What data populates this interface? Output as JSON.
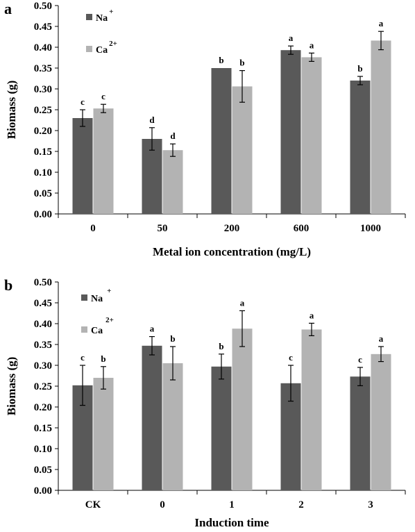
{
  "colors": {
    "na": "#595959",
    "ca": "#b3b3b3",
    "axis": "#000000"
  },
  "chart_data": [
    {
      "panel": "a",
      "type": "bar",
      "xlabel": "Metal ion concentration (mg/L)",
      "ylabel": "Biomass (g)",
      "ylim": [
        0,
        0.5
      ],
      "y_ticks": [
        "0.00",
        "0.05",
        "0.10",
        "0.15",
        "0.20",
        "0.25",
        "0.30",
        "0.35",
        "0.40",
        "0.45",
        "0.50"
      ],
      "categories": [
        "0",
        "50",
        "200",
        "600",
        "1000"
      ],
      "legend_position": "top-left",
      "series": [
        {
          "name": "Na",
          "sup": "+",
          "values": [
            0.23,
            0.18,
            0.35,
            0.393,
            0.32
          ],
          "errors": [
            0.02,
            0.027,
            0.0,
            0.01,
            0.01
          ],
          "labels": [
            "c",
            "d",
            "b",
            "a",
            "b"
          ]
        },
        {
          "name": "Ca",
          "sup": "2+",
          "values": [
            0.253,
            0.153,
            0.306,
            0.376,
            0.416
          ],
          "errors": [
            0.01,
            0.015,
            0.038,
            0.01,
            0.022
          ],
          "labels": [
            "c",
            "d",
            "b",
            "a",
            "a"
          ]
        }
      ]
    },
    {
      "panel": "b",
      "type": "bar",
      "xlabel": "Induction time",
      "ylabel": "Biomass (g)",
      "ylim": [
        0,
        0.5
      ],
      "y_ticks": [
        "0.00",
        "0.05",
        "0.10",
        "0.15",
        "0.20",
        "0.25",
        "0.30",
        "0.35",
        "0.40",
        "0.45",
        "0.50"
      ],
      "categories": [
        "CK",
        "0",
        "1",
        "2",
        "3"
      ],
      "legend_position": "top-left",
      "series": [
        {
          "name": "Na",
          "sup": "+",
          "values": [
            0.252,
            0.347,
            0.297,
            0.257,
            0.273
          ],
          "errors": [
            0.048,
            0.022,
            0.03,
            0.043,
            0.022
          ],
          "labels": [
            "c",
            "a",
            "b",
            "c",
            "c"
          ]
        },
        {
          "name": "Ca",
          "sup": "2+",
          "values": [
            0.27,
            0.305,
            0.388,
            0.386,
            0.327
          ],
          "errors": [
            0.027,
            0.04,
            0.043,
            0.015,
            0.018
          ],
          "labels": [
            "b",
            "b",
            "a",
            "a",
            "a"
          ]
        }
      ]
    }
  ]
}
